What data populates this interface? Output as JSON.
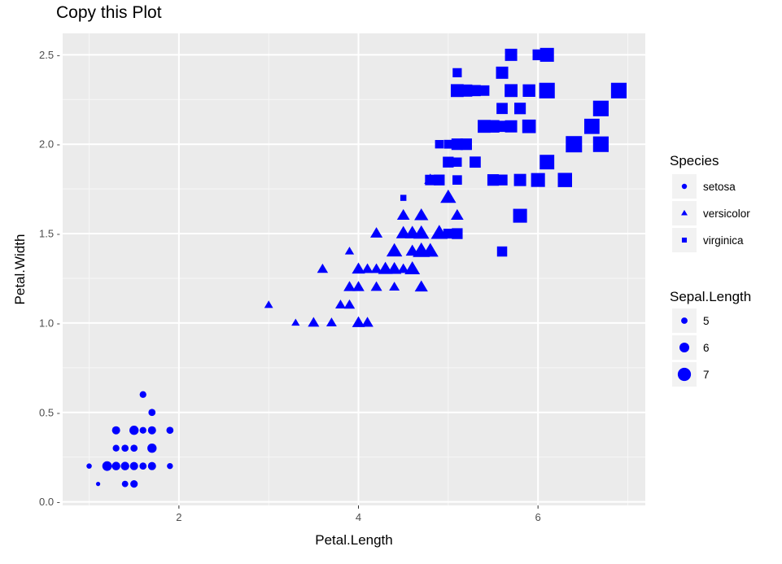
{
  "chart_data": {
    "type": "scatter",
    "title": "Copy this Plot",
    "xlabel": "Petal.Length",
    "ylabel": "Petal.Width",
    "xlim": [
      0.705,
      7.195
    ],
    "ylim": [
      -0.02,
      2.62
    ],
    "x_ticks": [
      2,
      4,
      6
    ],
    "x_tick_labels": [
      "2",
      "4",
      "6"
    ],
    "y_ticks": [
      0.0,
      0.5,
      1.0,
      1.5,
      2.0,
      2.5
    ],
    "y_tick_labels": [
      "0.0 -",
      "0.5 -",
      "1.0 -",
      "1.5 -",
      "2.0 -",
      "2.5 -"
    ],
    "grid": true,
    "point_color": "#0000ff",
    "panel_background": "#ebebeb",
    "legend_position": "right",
    "legends": [
      {
        "title": "Species",
        "entries": [
          {
            "label": "setosa",
            "shape": "circle"
          },
          {
            "label": "versicolor",
            "shape": "triangle"
          },
          {
            "label": "virginica",
            "shape": "square"
          }
        ]
      },
      {
        "title": "Sepal.Length",
        "entries": [
          {
            "label": "5",
            "value": 5
          },
          {
            "label": "6",
            "value": 6
          },
          {
            "label": "7",
            "value": 7
          }
        ]
      }
    ],
    "series": [
      {
        "name": "setosa",
        "shape": "circle",
        "points": [
          [
            1.4,
            0.2,
            5.1
          ],
          [
            1.4,
            0.2,
            4.9
          ],
          [
            1.3,
            0.2,
            4.7
          ],
          [
            1.5,
            0.2,
            4.6
          ],
          [
            1.4,
            0.2,
            5.0
          ],
          [
            1.7,
            0.4,
            5.4
          ],
          [
            1.4,
            0.3,
            4.6
          ],
          [
            1.5,
            0.2,
            5.0
          ],
          [
            1.4,
            0.2,
            4.4
          ],
          [
            1.5,
            0.1,
            4.9
          ],
          [
            1.5,
            0.2,
            5.4
          ],
          [
            1.6,
            0.2,
            4.8
          ],
          [
            1.4,
            0.1,
            4.8
          ],
          [
            1.1,
            0.1,
            4.3
          ],
          [
            1.2,
            0.2,
            5.8
          ],
          [
            1.5,
            0.4,
            5.7
          ],
          [
            1.3,
            0.4,
            5.4
          ],
          [
            1.4,
            0.3,
            5.1
          ],
          [
            1.7,
            0.3,
            5.7
          ],
          [
            1.5,
            0.3,
            5.1
          ],
          [
            1.7,
            0.2,
            5.4
          ],
          [
            1.5,
            0.4,
            5.1
          ],
          [
            1.0,
            0.2,
            4.6
          ],
          [
            1.7,
            0.5,
            5.1
          ],
          [
            1.9,
            0.2,
            4.8
          ],
          [
            1.6,
            0.2,
            5.0
          ],
          [
            1.6,
            0.4,
            5.0
          ],
          [
            1.5,
            0.2,
            5.2
          ],
          [
            1.4,
            0.2,
            5.2
          ],
          [
            1.6,
            0.2,
            4.7
          ],
          [
            1.6,
            0.2,
            4.8
          ],
          [
            1.5,
            0.4,
            5.4
          ],
          [
            1.5,
            0.1,
            5.2
          ],
          [
            1.4,
            0.2,
            5.5
          ],
          [
            1.5,
            0.2,
            4.9
          ],
          [
            1.2,
            0.2,
            5.0
          ],
          [
            1.3,
            0.2,
            5.5
          ],
          [
            1.4,
            0.1,
            4.9
          ],
          [
            1.3,
            0.2,
            4.4
          ],
          [
            1.5,
            0.2,
            5.1
          ],
          [
            1.3,
            0.3,
            5.0
          ],
          [
            1.3,
            0.3,
            4.5
          ],
          [
            1.3,
            0.2,
            4.4
          ],
          [
            1.6,
            0.6,
            5.0
          ],
          [
            1.9,
            0.4,
            5.1
          ],
          [
            1.4,
            0.3,
            4.8
          ],
          [
            1.6,
            0.2,
            5.1
          ],
          [
            1.4,
            0.2,
            4.6
          ],
          [
            1.5,
            0.2,
            5.3
          ],
          [
            1.4,
            0.2,
            5.0
          ]
        ]
      },
      {
        "name": "versicolor",
        "shape": "triangle",
        "points": [
          [
            4.7,
            1.4,
            7.0
          ],
          [
            4.5,
            1.5,
            6.4
          ],
          [
            4.9,
            1.5,
            6.9
          ],
          [
            4.0,
            1.3,
            5.5
          ],
          [
            4.6,
            1.5,
            6.5
          ],
          [
            4.5,
            1.3,
            5.7
          ],
          [
            4.7,
            1.6,
            6.3
          ],
          [
            3.3,
            1.0,
            4.9
          ],
          [
            4.6,
            1.3,
            6.6
          ],
          [
            3.9,
            1.4,
            5.2
          ],
          [
            3.5,
            1.0,
            5.0
          ],
          [
            4.2,
            1.5,
            5.9
          ],
          [
            4.0,
            1.0,
            6.0
          ],
          [
            4.7,
            1.4,
            6.1
          ],
          [
            3.6,
            1.3,
            5.6
          ],
          [
            4.4,
            1.4,
            6.7
          ],
          [
            4.5,
            1.5,
            5.6
          ],
          [
            4.1,
            1.0,
            5.8
          ],
          [
            4.5,
            1.5,
            6.2
          ],
          [
            3.9,
            1.1,
            5.6
          ],
          [
            4.8,
            1.8,
            5.9
          ],
          [
            4.0,
            1.3,
            6.1
          ],
          [
            4.9,
            1.5,
            6.3
          ],
          [
            4.7,
            1.2,
            6.1
          ],
          [
            4.3,
            1.3,
            6.4
          ],
          [
            4.4,
            1.4,
            6.6
          ],
          [
            4.8,
            1.4,
            6.8
          ],
          [
            5.0,
            1.7,
            6.7
          ],
          [
            4.5,
            1.5,
            6.0
          ],
          [
            3.5,
            1.0,
            5.7
          ],
          [
            3.8,
            1.1,
            5.5
          ],
          [
            3.7,
            1.0,
            5.5
          ],
          [
            3.9,
            1.2,
            5.8
          ],
          [
            5.1,
            1.6,
            6.0
          ],
          [
            4.5,
            1.5,
            5.4
          ],
          [
            4.5,
            1.6,
            6.0
          ],
          [
            4.7,
            1.5,
            6.7
          ],
          [
            4.4,
            1.3,
            6.3
          ],
          [
            4.1,
            1.3,
            5.6
          ],
          [
            4.0,
            1.3,
            5.5
          ],
          [
            4.4,
            1.2,
            5.5
          ],
          [
            4.6,
            1.4,
            6.1
          ],
          [
            4.0,
            1.2,
            5.8
          ],
          [
            3.3,
            1.0,
            5.0
          ],
          [
            4.2,
            1.3,
            5.6
          ],
          [
            4.2,
            1.2,
            5.7
          ],
          [
            4.2,
            1.3,
            5.7
          ],
          [
            4.3,
            1.3,
            6.2
          ],
          [
            3.0,
            1.1,
            5.1
          ],
          [
            4.1,
            1.3,
            5.7
          ]
        ]
      },
      {
        "name": "virginica",
        "shape": "square",
        "points": [
          [
            6.0,
            2.5,
            6.3
          ],
          [
            5.1,
            1.9,
            5.8
          ],
          [
            5.9,
            2.1,
            7.1
          ],
          [
            5.6,
            1.8,
            6.3
          ],
          [
            5.8,
            2.2,
            6.5
          ],
          [
            6.6,
            2.1,
            7.6
          ],
          [
            4.5,
            1.7,
            4.9
          ],
          [
            6.3,
            1.8,
            7.3
          ],
          [
            5.8,
            1.8,
            6.7
          ],
          [
            6.1,
            2.5,
            7.2
          ],
          [
            5.1,
            2.0,
            6.5
          ],
          [
            5.3,
            1.9,
            6.4
          ],
          [
            5.5,
            2.1,
            6.8
          ],
          [
            5.0,
            2.0,
            5.7
          ],
          [
            5.1,
            2.4,
            5.8
          ],
          [
            5.3,
            2.3,
            6.4
          ],
          [
            5.5,
            1.8,
            6.5
          ],
          [
            6.7,
            2.2,
            7.7
          ],
          [
            6.9,
            2.3,
            7.7
          ],
          [
            5.0,
            1.5,
            6.0
          ],
          [
            5.7,
            2.3,
            6.9
          ],
          [
            4.9,
            2.0,
            5.6
          ],
          [
            6.7,
            2.0,
            7.7
          ],
          [
            4.9,
            1.8,
            6.3
          ],
          [
            5.7,
            2.1,
            6.7
          ],
          [
            6.0,
            1.8,
            7.2
          ],
          [
            4.8,
            1.8,
            6.2
          ],
          [
            4.9,
            1.8,
            6.1
          ],
          [
            5.6,
            2.1,
            6.4
          ],
          [
            5.8,
            1.6,
            7.2
          ],
          [
            6.1,
            1.9,
            7.4
          ],
          [
            6.4,
            2.0,
            7.9
          ],
          [
            5.6,
            2.2,
            6.4
          ],
          [
            5.1,
            1.5,
            6.3
          ],
          [
            5.6,
            1.4,
            6.1
          ],
          [
            6.1,
            2.3,
            7.7
          ],
          [
            5.6,
            2.4,
            6.3
          ],
          [
            5.5,
            1.8,
            6.4
          ],
          [
            4.8,
            1.8,
            6.0
          ],
          [
            5.4,
            2.1,
            6.9
          ],
          [
            5.6,
            2.4,
            6.7
          ],
          [
            5.1,
            2.3,
            6.9
          ],
          [
            5.1,
            1.9,
            5.8
          ],
          [
            5.9,
            2.3,
            6.8
          ],
          [
            5.7,
            2.5,
            6.7
          ],
          [
            5.2,
            2.3,
            6.7
          ],
          [
            5.0,
            1.9,
            6.3
          ],
          [
            5.2,
            2.0,
            6.5
          ],
          [
            5.4,
            2.3,
            6.2
          ],
          [
            5.1,
            1.8,
            5.9
          ]
        ]
      }
    ]
  }
}
